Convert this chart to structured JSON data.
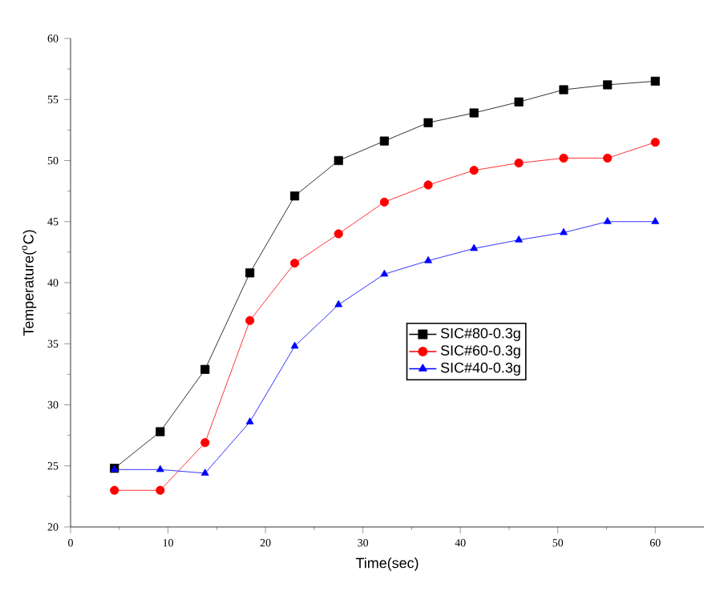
{
  "chart_data": {
    "type": "line",
    "xlabel": "Time(sec)",
    "ylabel": "Temperature($^{o}$C)",
    "x": [
      4.5,
      9.2,
      13.8,
      18.4,
      23,
      27.5,
      32.2,
      36.7,
      41.4,
      46,
      50.6,
      55.1,
      60
    ],
    "series": [
      {
        "name": "SIC#80-0.3g",
        "color": "#000000",
        "marker": "square",
        "values": [
          24.8,
          27.8,
          32.9,
          40.8,
          47.1,
          50.0,
          51.6,
          53.1,
          53.9,
          54.8,
          55.8,
          56.2,
          56.5
        ]
      },
      {
        "name": "SIC#60-0.3g",
        "color": "#ff0000",
        "marker": "circle",
        "values": [
          23.0,
          23.0,
          26.9,
          36.9,
          41.6,
          44.0,
          46.6,
          48.0,
          49.2,
          49.8,
          50.2,
          50.2,
          51.5
        ]
      },
      {
        "name": "SIC#40-0.3g",
        "color": "#0000ff",
        "marker": "triangle",
        "values": [
          24.7,
          24.7,
          24.4,
          28.6,
          34.8,
          38.2,
          40.7,
          41.8,
          42.8,
          43.5,
          44.1,
          45.0,
          45.0
        ]
      }
    ],
    "xlim": [
      0,
      65
    ],
    "xticks": [
      0,
      10,
      20,
      30,
      40,
      50,
      60
    ],
    "ylim": [
      20,
      60
    ],
    "yticks": [
      20,
      25,
      30,
      35,
      40,
      45,
      50,
      55,
      60
    ],
    "legend": "right",
    "grid": false,
    "line_style": "solid"
  }
}
